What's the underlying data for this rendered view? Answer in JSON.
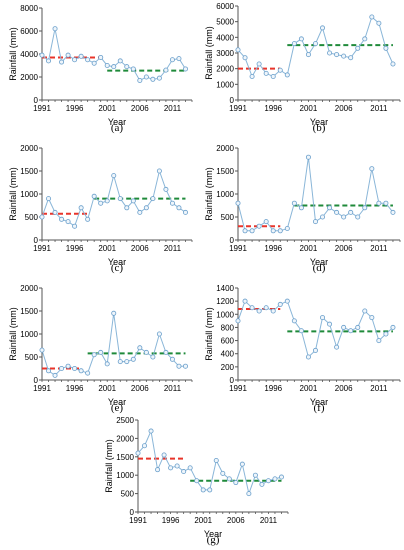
{
  "chart_data": [
    {
      "type": "line",
      "panel": "(a)",
      "ylabel": "Rainfall (mm)",
      "xlabel": "Year",
      "xlim": [
        1991,
        2014
      ],
      "ylim": [
        0,
        8000
      ],
      "y_ticks": [
        0,
        2000,
        4000,
        6000,
        8000
      ],
      "x_ticks": [
        1991,
        1996,
        2001,
        2006,
        2011
      ],
      "x": [
        1991,
        1992,
        1993,
        1994,
        1995,
        1996,
        1997,
        1998,
        1999,
        2000,
        2001,
        2002,
        2003,
        2004,
        2005,
        2006,
        2007,
        2008,
        2009,
        2010,
        2011,
        2012,
        2013
      ],
      "values": [
        3900,
        3400,
        6200,
        3300,
        3900,
        3500,
        3800,
        3500,
        3200,
        3700,
        3000,
        2900,
        3400,
        2900,
        2700,
        1700,
        2000,
        1800,
        1900,
        2600,
        3500,
        3600,
        2700
      ],
      "segments": [
        {
          "color": "#e8342a",
          "x": [
            1991,
            2000
          ],
          "value": 3700
        },
        {
          "color": "#1f8a3a",
          "x": [
            2001,
            2013
          ],
          "value": 2550
        }
      ]
    },
    {
      "type": "line",
      "panel": "(b)",
      "ylabel": "Rainfall (mm)",
      "xlabel": "Year",
      "xlim": [
        1991,
        2014
      ],
      "ylim": [
        0,
        6000
      ],
      "y_ticks": [
        0,
        1000,
        2000,
        3000,
        4000,
        5000,
        6000
      ],
      "x_ticks": [
        1991,
        1996,
        2001,
        2006,
        2011
      ],
      "x": [
        1991,
        1992,
        1993,
        1994,
        1995,
        1996,
        1997,
        1998,
        1999,
        2000,
        2001,
        2002,
        2003,
        2004,
        2005,
        2006,
        2007,
        2008,
        2009,
        2010,
        2011,
        2012,
        2013
      ],
      "values": [
        3200,
        2700,
        1500,
        2300,
        1700,
        1500,
        1900,
        1600,
        3600,
        3900,
        2900,
        3600,
        4600,
        3000,
        2900,
        2800,
        2700,
        3300,
        3900,
        5300,
        4900,
        3300,
        2300
      ],
      "segments": [
        {
          "color": "#e8342a",
          "x": [
            1991,
            1997
          ],
          "value": 2000
        },
        {
          "color": "#1f8a3a",
          "x": [
            1998,
            2013
          ],
          "value": 3500
        }
      ]
    },
    {
      "type": "line",
      "panel": "(c)",
      "ylabel": "Rainfall (mm)",
      "xlabel": "Year",
      "xlim": [
        1991,
        2014
      ],
      "ylim": [
        0,
        2000
      ],
      "y_ticks": [
        0,
        500,
        1000,
        1500,
        2000
      ],
      "x_ticks": [
        1991,
        1996,
        2001,
        2006,
        2011
      ],
      "x": [
        1991,
        1992,
        1993,
        1994,
        1995,
        1996,
        1997,
        1998,
        1999,
        2000,
        2001,
        2002,
        2003,
        2004,
        2005,
        2006,
        2007,
        2008,
        2009,
        2010,
        2011,
        2012,
        2013
      ],
      "values": [
        500,
        900,
        600,
        450,
        400,
        300,
        700,
        450,
        950,
        800,
        850,
        1400,
        900,
        700,
        850,
        600,
        700,
        900,
        1500,
        1100,
        800,
        700,
        600
      ],
      "segments": [
        {
          "color": "#e8342a",
          "x": [
            1991,
            1998
          ],
          "value": 570
        },
        {
          "color": "#1f8a3a",
          "x": [
            1999,
            2013
          ],
          "value": 900
        }
      ]
    },
    {
      "type": "line",
      "panel": "(d)",
      "ylabel": "Rainfall (mm)",
      "xlabel": "Year",
      "xlim": [
        1991,
        2014
      ],
      "ylim": [
        0,
        2000
      ],
      "y_ticks": [
        0,
        500,
        1000,
        1500,
        2000
      ],
      "x_ticks": [
        1991,
        1996,
        2001,
        2006,
        2011
      ],
      "x": [
        1991,
        1992,
        1993,
        1994,
        1995,
        1996,
        1997,
        1998,
        1999,
        2000,
        2001,
        2002,
        2003,
        2004,
        2005,
        2006,
        2007,
        2008,
        2009,
        2010,
        2011,
        2012,
        2013
      ],
      "values": [
        800,
        200,
        200,
        300,
        400,
        200,
        200,
        250,
        800,
        700,
        1800,
        400,
        500,
        700,
        600,
        500,
        600,
        500,
        700,
        1550,
        800,
        800,
        600
      ],
      "segments": [
        {
          "color": "#e8342a",
          "x": [
            1991,
            1997
          ],
          "value": 300
        },
        {
          "color": "#1f8a3a",
          "x": [
            1999,
            2013
          ],
          "value": 750
        }
      ]
    },
    {
      "type": "line",
      "panel": "(e)",
      "ylabel": "Rainfall (mm)",
      "xlabel": "Year",
      "xlim": [
        1991,
        2014
      ],
      "ylim": [
        0,
        2000
      ],
      "y_ticks": [
        0,
        500,
        1000,
        1500,
        2000
      ],
      "x_ticks": [
        1991,
        1996,
        2001,
        2006,
        2011
      ],
      "x": [
        1991,
        1992,
        1993,
        1994,
        1995,
        1996,
        1997,
        1998,
        1999,
        2000,
        2001,
        2002,
        2003,
        2004,
        2005,
        2006,
        2007,
        2008,
        2009,
        2010,
        2011,
        2012,
        2013
      ],
      "values": [
        650,
        200,
        100,
        250,
        300,
        250,
        200,
        150,
        550,
        600,
        350,
        1450,
        400,
        400,
        450,
        700,
        600,
        500,
        1000,
        600,
        450,
        300,
        300
      ],
      "segments": [
        {
          "color": "#e8342a",
          "x": [
            1991,
            1997
          ],
          "value": 250
        },
        {
          "color": "#1f8a3a",
          "x": [
            1998,
            2013
          ],
          "value": 580
        }
      ]
    },
    {
      "type": "line",
      "panel": "(f)",
      "ylabel": "Rainfall (mm)",
      "xlabel": "Year",
      "xlim": [
        1991,
        2014
      ],
      "ylim": [
        0,
        1400
      ],
      "y_ticks": [
        0,
        200,
        400,
        600,
        800,
        1000,
        1200,
        1400
      ],
      "x_ticks": [
        1991,
        1996,
        2001,
        2006,
        2011
      ],
      "x": [
        1991,
        1992,
        1993,
        1994,
        1995,
        1996,
        1997,
        1998,
        1999,
        2000,
        2001,
        2002,
        2003,
        2004,
        2005,
        2006,
        2007,
        2008,
        2009,
        2010,
        2011,
        2012,
        2013
      ],
      "values": [
        900,
        1200,
        1100,
        1050,
        1100,
        1050,
        1150,
        1200,
        900,
        750,
        350,
        450,
        950,
        850,
        500,
        800,
        750,
        800,
        1050,
        950,
        600,
        700,
        800
      ],
      "segments": [
        {
          "color": "#e8342a",
          "x": [
            1991,
            1997
          ],
          "value": 1080
        },
        {
          "color": "#1f8a3a",
          "x": [
            1998,
            2013
          ],
          "value": 740
        }
      ]
    },
    {
      "type": "line",
      "panel": "(g)",
      "ylabel": "Rainfall (mm)",
      "xlabel": "Year",
      "xlim": [
        1991,
        2014
      ],
      "ylim": [
        0,
        2500
      ],
      "y_ticks": [
        0,
        500,
        1000,
        1500,
        2000,
        2500
      ],
      "x_ticks": [
        1991,
        1996,
        2001,
        2006,
        2011
      ],
      "x": [
        1991,
        1992,
        1993,
        1994,
        1995,
        1996,
        1997,
        1998,
        1999,
        2000,
        2001,
        2002,
        2003,
        2004,
        2005,
        2006,
        2007,
        2008,
        2009,
        2010,
        2011,
        2012,
        2013
      ],
      "values": [
        1600,
        1800,
        2200,
        1150,
        1550,
        1200,
        1250,
        1100,
        1200,
        850,
        600,
        600,
        1400,
        1050,
        900,
        800,
        1300,
        500,
        1000,
        750,
        850,
        900,
        950
      ],
      "segments": [
        {
          "color": "#e8342a",
          "x": [
            1991,
            1998
          ],
          "value": 1450
        },
        {
          "color": "#1f8a3a",
          "x": [
            1999,
            2013
          ],
          "value": 850
        }
      ]
    }
  ]
}
